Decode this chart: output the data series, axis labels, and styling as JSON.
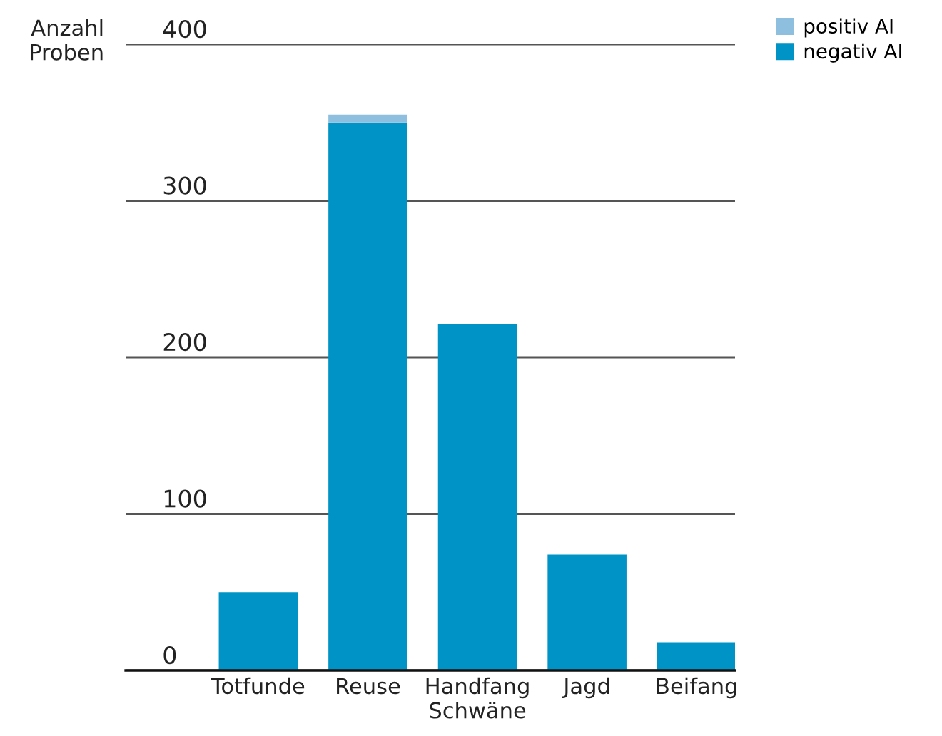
{
  "chart_data": {
    "type": "bar",
    "stacked": true,
    "ylabel": "Anzahl\nProben",
    "categories": [
      "Totfunde",
      "Reuse",
      "Handfang\nSchwäne",
      "Jagd",
      "Beifang"
    ],
    "series": [
      {
        "name": "negativ AI",
        "color": "#0094c6",
        "values": [
          50,
          350,
          221,
          74,
          18
        ]
      },
      {
        "name": "positiv AI",
        "color": "#8fbfdf",
        "values": [
          0,
          5,
          0,
          0,
          0
        ]
      }
    ],
    "ylim": [
      0,
      400
    ],
    "yticks": [
      0,
      100,
      200,
      300,
      400
    ],
    "grid": "y",
    "legend": "top right"
  }
}
